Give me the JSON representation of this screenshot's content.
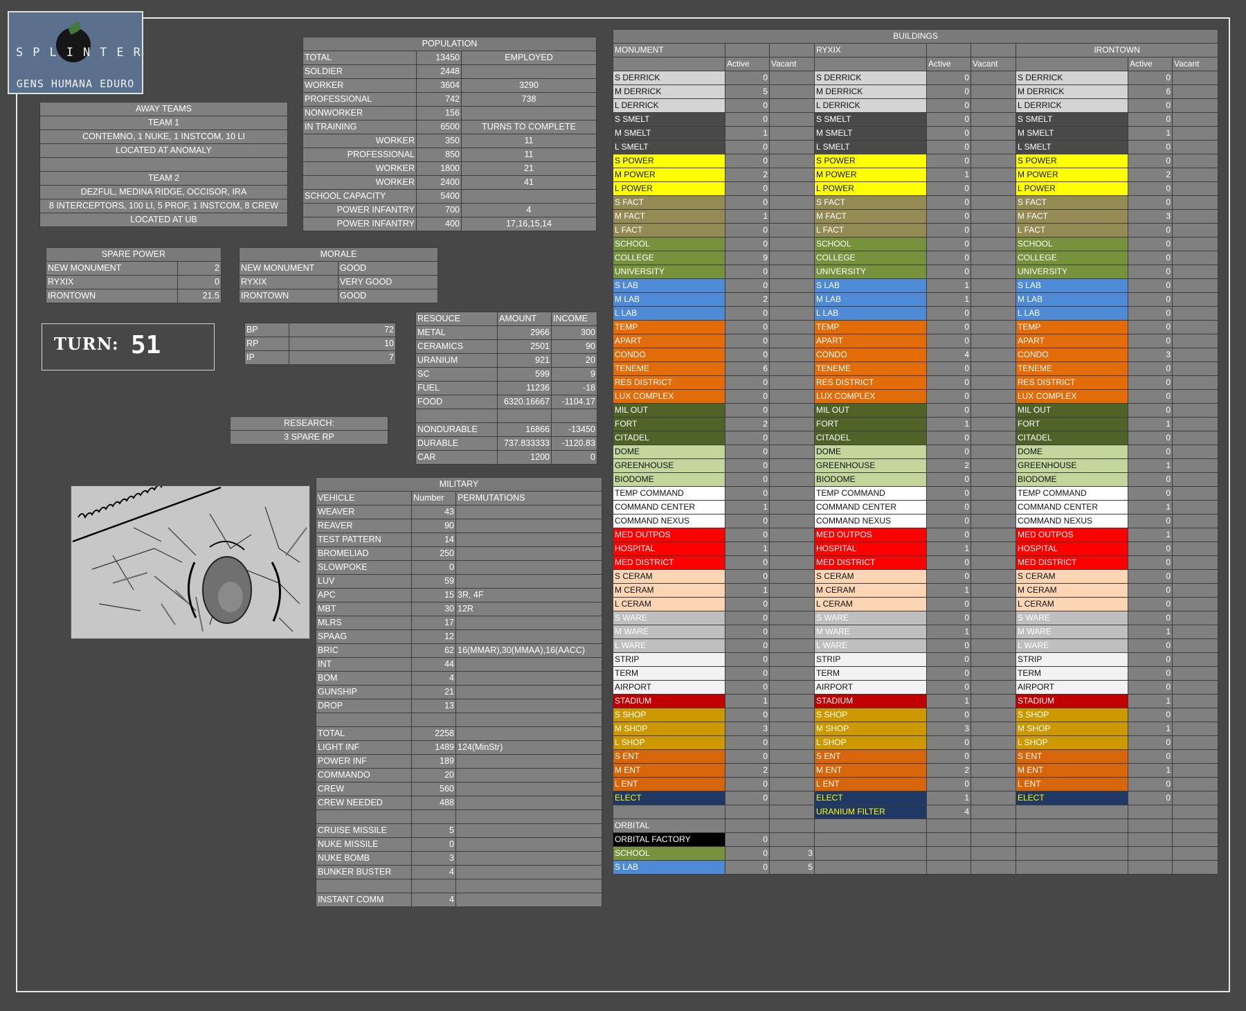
{
  "logo": {
    "title": "SPLINTER",
    "motto": "GENS HUMANA EDURO"
  },
  "population": {
    "title": "POPULATION",
    "rows": [
      [
        "TOTAL",
        "13450",
        "EMPLOYED"
      ],
      [
        "SOLDIER",
        "2448",
        ""
      ],
      [
        "WORKER",
        "3604",
        "3290"
      ],
      [
        "PROFESSIONAL",
        "742",
        "738"
      ],
      [
        "NONWORKER",
        "156",
        ""
      ],
      [
        "IN TRAINING",
        "6500",
        "TURNS TO COMPLETE"
      ],
      [
        "WORKER",
        "350",
        "11"
      ],
      [
        "PROFESSIONAL",
        "850",
        "11"
      ],
      [
        "WORKER",
        "1800",
        "21"
      ],
      [
        "WORKER",
        "2400",
        "41"
      ],
      [
        "SCHOOL CAPACITY",
        "5400",
        ""
      ],
      [
        "POWER INFANTRY",
        "700",
        "4"
      ],
      [
        "POWER INFANTRY",
        "400",
        "17,16,15,14"
      ]
    ]
  },
  "away": {
    "rows": [
      "AWAY TEAMS",
      "TEAM 1",
      "CONTEMNO, 1 NUKE, 1 INSTCOM, 10 LI",
      "LOCATED AT ANOMALY",
      "",
      "TEAM 2",
      "DEZFUL, MEDINA RIDGE, OCCISOR, IRA",
      "8 INTERCEPTORS, 100 LI, 5 PROF, 1 INSTCOM, 8 CREW",
      "LOCATED AT UB"
    ]
  },
  "spare_power": {
    "title": "SPARE POWER",
    "rows": [
      [
        "NEW MONUMENT",
        "2"
      ],
      [
        "RYXIX",
        "0"
      ],
      [
        "IRONTOWN",
        "21.5"
      ]
    ]
  },
  "morale": {
    "title": "MORALE",
    "rows": [
      [
        "NEW MONUMENT",
        "GOOD"
      ],
      [
        "RYXIX",
        "VERY GOOD"
      ],
      [
        "IRONTOWN",
        "GOOD"
      ]
    ]
  },
  "turn": {
    "label": "TURN:",
    "value": "51"
  },
  "points": {
    "rows": [
      [
        "BP",
        "72"
      ],
      [
        "RP",
        "10"
      ],
      [
        "IP",
        "7"
      ]
    ]
  },
  "research": {
    "title": "RESEARCH:",
    "value": "3 SPARE RP"
  },
  "resources": {
    "headers": [
      "RESOUCE",
      "AMOUNT",
      "INCOME"
    ],
    "rows": [
      [
        "METAL",
        "2966",
        "300"
      ],
      [
        "CERAMICS",
        "2501",
        "90"
      ],
      [
        "URANIUM",
        "921",
        "20"
      ],
      [
        "SC",
        "599",
        "9"
      ],
      [
        "FUEL",
        "11236",
        "-18"
      ],
      [
        "FOOD",
        "6320.16667",
        "-1104.17"
      ],
      [
        "",
        "",
        ""
      ],
      [
        "NONDURABLE",
        "16866",
        "-13450"
      ],
      [
        "DURABLE",
        "737.833333",
        "-1120.83"
      ],
      [
        "CAR",
        "1200",
        "0"
      ]
    ]
  },
  "military": {
    "title": "MILITARY",
    "headers": [
      "VEHICLE",
      "Number",
      "PERMUTATIONS"
    ],
    "rows": [
      [
        "WEAVER",
        "43",
        ""
      ],
      [
        "REAVER",
        "90",
        ""
      ],
      [
        "TEST PATTERN",
        "14",
        ""
      ],
      [
        "BROMELIAD",
        "250",
        ""
      ],
      [
        "SLOWPOKE",
        "0",
        ""
      ],
      [
        "LUV",
        "59",
        ""
      ],
      [
        "APC",
        "15",
        "3R, 4F"
      ],
      [
        "MBT",
        "30",
        "12R"
      ],
      [
        "MLRS",
        "17",
        ""
      ],
      [
        "SPAAG",
        "12",
        ""
      ],
      [
        "BRIC",
        "62",
        "16(MMAR),30(MMAA),16(AACC)"
      ],
      [
        "INT",
        "44",
        ""
      ],
      [
        "BOM",
        "4",
        ""
      ],
      [
        "GUNSHIP",
        "21",
        ""
      ],
      [
        "DROP",
        "13",
        ""
      ],
      [
        "",
        "",
        ""
      ],
      [
        "TOTAL",
        "2258",
        ""
      ],
      [
        "LIGHT INF",
        "1489",
        "124(MinStr)"
      ],
      [
        "POWER INF",
        "189",
        ""
      ],
      [
        "COMMANDO",
        "20",
        ""
      ],
      [
        "CREW",
        "560",
        ""
      ],
      [
        "CREW NEEDED",
        "488",
        ""
      ],
      [
        "",
        "",
        ""
      ],
      [
        "CRUISE MISSILE",
        "5",
        ""
      ],
      [
        "NUKE MISSILE",
        "0",
        ""
      ],
      [
        "NUKE BOMB",
        "3",
        ""
      ],
      [
        "BUNKER BUSTER",
        "4",
        ""
      ],
      [
        "",
        "",
        ""
      ],
      [
        "INSTANT COMM",
        "4",
        ""
      ]
    ]
  },
  "buildings": {
    "title": "BUILDINGS",
    "cities": [
      "MONUMENT",
      "RYXIX",
      "IRONTOWN"
    ],
    "subheaders": [
      "Active",
      "Vacant"
    ],
    "rows": [
      {
        "name": "S DERRICK",
        "cls": "bg-derrick",
        "v": [
          "0",
          "",
          "0",
          "",
          "0",
          ""
        ]
      },
      {
        "name": "M DERRICK",
        "cls": "bg-derrick",
        "v": [
          "5",
          "",
          "0",
          "",
          "6",
          ""
        ]
      },
      {
        "name": "L DERRICK",
        "cls": "bg-derrick",
        "v": [
          "0",
          "",
          "0",
          "",
          "0",
          ""
        ]
      },
      {
        "name": "S SMELT",
        "cls": "bg-smelt",
        "v": [
          "0",
          "",
          "0",
          "",
          "0",
          ""
        ]
      },
      {
        "name": "M SMELT",
        "cls": "bg-smelt",
        "v": [
          "1",
          "",
          "0",
          "",
          "1",
          ""
        ]
      },
      {
        "name": "L SMELT",
        "cls": "bg-smelt",
        "v": [
          "0",
          "",
          "0",
          "",
          "0",
          ""
        ]
      },
      {
        "name": "S POWER",
        "cls": "bg-power",
        "v": [
          "0",
          "",
          "0",
          "",
          "0",
          ""
        ]
      },
      {
        "name": "M POWER",
        "cls": "bg-power",
        "v": [
          "2",
          "",
          "1",
          "",
          "2",
          ""
        ]
      },
      {
        "name": "L POWER",
        "cls": "bg-power",
        "v": [
          "0",
          "",
          "0",
          "",
          "0",
          ""
        ]
      },
      {
        "name": "S FACT",
        "cls": "bg-fact",
        "v": [
          "0",
          "",
          "0",
          "",
          "0",
          ""
        ]
      },
      {
        "name": "M FACT",
        "cls": "bg-fact",
        "v": [
          "1",
          "",
          "0",
          "",
          "3",
          ""
        ]
      },
      {
        "name": "L FACT",
        "cls": "bg-fact",
        "v": [
          "0",
          "",
          "0",
          "",
          "0",
          ""
        ]
      },
      {
        "name": "SCHOOL",
        "cls": "bg-school",
        "v": [
          "0",
          "",
          "0",
          "",
          "0",
          ""
        ]
      },
      {
        "name": "COLLEGE",
        "cls": "bg-school",
        "v": [
          "9",
          "",
          "0",
          "",
          "0",
          ""
        ]
      },
      {
        "name": "UNIVERSITY",
        "cls": "bg-school",
        "v": [
          "0",
          "",
          "0",
          "",
          "0",
          ""
        ]
      },
      {
        "name": "S LAB",
        "cls": "bg-lab",
        "v": [
          "0",
          "",
          "1",
          "",
          "0",
          ""
        ]
      },
      {
        "name": "M LAB",
        "cls": "bg-lab",
        "v": [
          "2",
          "",
          "1",
          "",
          "0",
          ""
        ]
      },
      {
        "name": "L LAB",
        "cls": "bg-lab",
        "v": [
          "0",
          "",
          "0",
          "",
          "0",
          ""
        ]
      },
      {
        "name": "TEMP",
        "cls": "bg-res",
        "v": [
          "0",
          "",
          "0",
          "",
          "0",
          ""
        ]
      },
      {
        "name": "APART",
        "cls": "bg-res",
        "v": [
          "0",
          "",
          "0",
          "",
          "0",
          ""
        ]
      },
      {
        "name": "CONDO",
        "cls": "bg-res",
        "v": [
          "0",
          "",
          "4",
          "",
          "3",
          ""
        ]
      },
      {
        "name": "TENEME",
        "cls": "bg-res",
        "v": [
          "6",
          "",
          "0",
          "",
          "0",
          ""
        ]
      },
      {
        "name": "RES DISTRICT",
        "cls": "bg-res",
        "v": [
          "0",
          "",
          "0",
          "",
          "0",
          ""
        ]
      },
      {
        "name": "LUX COMPLEX",
        "cls": "bg-res",
        "v": [
          "0",
          "",
          "0",
          "",
          "0",
          ""
        ]
      },
      {
        "name": "MIL OUT",
        "cls": "bg-mil",
        "v": [
          "0",
          "",
          "0",
          "",
          "0",
          ""
        ]
      },
      {
        "name": "FORT",
        "cls": "bg-mil",
        "v": [
          "2",
          "",
          "1",
          "",
          "1",
          ""
        ]
      },
      {
        "name": "CITADEL",
        "cls": "bg-mil",
        "v": [
          "0",
          "",
          "0",
          "",
          "0",
          ""
        ]
      },
      {
        "name": "DOME",
        "cls": "bg-dome",
        "v": [
          "0",
          "",
          "0",
          "",
          "0",
          ""
        ]
      },
      {
        "name": "GREENHOUSE",
        "cls": "bg-dome",
        "v": [
          "0",
          "",
          "2",
          "",
          "1",
          ""
        ]
      },
      {
        "name": "BIODOME",
        "cls": "bg-dome",
        "v": [
          "0",
          "",
          "0",
          "",
          "0",
          ""
        ]
      },
      {
        "name": "TEMP COMMAND",
        "cls": "bg-cmd",
        "v": [
          "0",
          "",
          "0",
          "",
          "0",
          ""
        ]
      },
      {
        "name": "COMMAND CENTER",
        "cls": "bg-cmd",
        "v": [
          "1",
          "",
          "0",
          "",
          "1",
          ""
        ]
      },
      {
        "name": "COMMAND NEXUS",
        "cls": "bg-cmd",
        "v": [
          "0",
          "",
          "0",
          "",
          "0",
          ""
        ]
      },
      {
        "name": "MED OUTPOS",
        "cls": "bg-med",
        "v": [
          "0",
          "",
          "0",
          "",
          "1",
          ""
        ]
      },
      {
        "name": "HOSPITAL",
        "cls": "bg-med",
        "v": [
          "1",
          "",
          "1",
          "",
          "0",
          ""
        ]
      },
      {
        "name": "MED DISTRICT",
        "cls": "bg-med",
        "v": [
          "0",
          "",
          "0",
          "",
          "0",
          ""
        ]
      },
      {
        "name": "S CERAM",
        "cls": "bg-ceram",
        "v": [
          "0",
          "",
          "0",
          "",
          "0",
          ""
        ]
      },
      {
        "name": "M CERAM",
        "cls": "bg-ceram",
        "v": [
          "1",
          "",
          "1",
          "",
          "0",
          ""
        ]
      },
      {
        "name": "L CERAM",
        "cls": "bg-ceram",
        "v": [
          "0",
          "",
          "0",
          "",
          "0",
          ""
        ]
      },
      {
        "name": "S WARE",
        "cls": "bg-ware",
        "v": [
          "0",
          "",
          "0",
          "",
          "0",
          ""
        ]
      },
      {
        "name": "M WARE",
        "cls": "bg-ware",
        "v": [
          "0",
          "",
          "1",
          "",
          "1",
          ""
        ]
      },
      {
        "name": "L WARE",
        "cls": "bg-ware",
        "v": [
          "0",
          "",
          "0",
          "",
          "0",
          ""
        ]
      },
      {
        "name": "STRIP",
        "cls": "bg-strip",
        "v": [
          "0",
          "",
          "0",
          "",
          "0",
          ""
        ]
      },
      {
        "name": "TERM",
        "cls": "bg-strip",
        "v": [
          "0",
          "",
          "0",
          "",
          "0",
          ""
        ]
      },
      {
        "name": "AIRPORT",
        "cls": "bg-strip",
        "v": [
          "0",
          "",
          "0",
          "",
          "0",
          ""
        ]
      },
      {
        "name": "STADIUM",
        "cls": "bg-stadium",
        "v": [
          "1",
          "",
          "1",
          "",
          "1",
          ""
        ]
      },
      {
        "name": "S SHOP",
        "cls": "bg-shop",
        "v": [
          "0",
          "",
          "0",
          "",
          "0",
          ""
        ]
      },
      {
        "name": "M SHOP",
        "cls": "bg-shop",
        "v": [
          "3",
          "",
          "3",
          "",
          "1",
          ""
        ]
      },
      {
        "name": "L SHOP",
        "cls": "bg-shop",
        "v": [
          "0",
          "",
          "0",
          "",
          "0",
          ""
        ]
      },
      {
        "name": "S ENT",
        "cls": "bg-ent",
        "v": [
          "0",
          "",
          "0",
          "",
          "0",
          ""
        ]
      },
      {
        "name": "M ENT",
        "cls": "bg-ent",
        "v": [
          "2",
          "",
          "2",
          "",
          "1",
          ""
        ]
      },
      {
        "name": "L ENT",
        "cls": "bg-ent",
        "v": [
          "0",
          "",
          "0",
          "",
          "0",
          ""
        ]
      },
      {
        "name": "ELECT",
        "cls": "bg-elect",
        "v": [
          "0",
          "",
          "1",
          "",
          "0",
          ""
        ]
      }
    ],
    "extra_ryxix": {
      "name": "URANIUM FILTER",
      "value": "4"
    },
    "orbital": {
      "title": "ORBITAL",
      "rows": [
        {
          "name": "ORBITAL FACTORY",
          "cls": "bg-orbfac",
          "active": "0",
          "vacant": ""
        },
        {
          "name": "SCHOOL",
          "cls": "bg-school",
          "active": "0",
          "vacant": "3"
        },
        {
          "name": "S LAB",
          "cls": "bg-lab",
          "active": "0",
          "vacant": "5"
        }
      ]
    }
  }
}
